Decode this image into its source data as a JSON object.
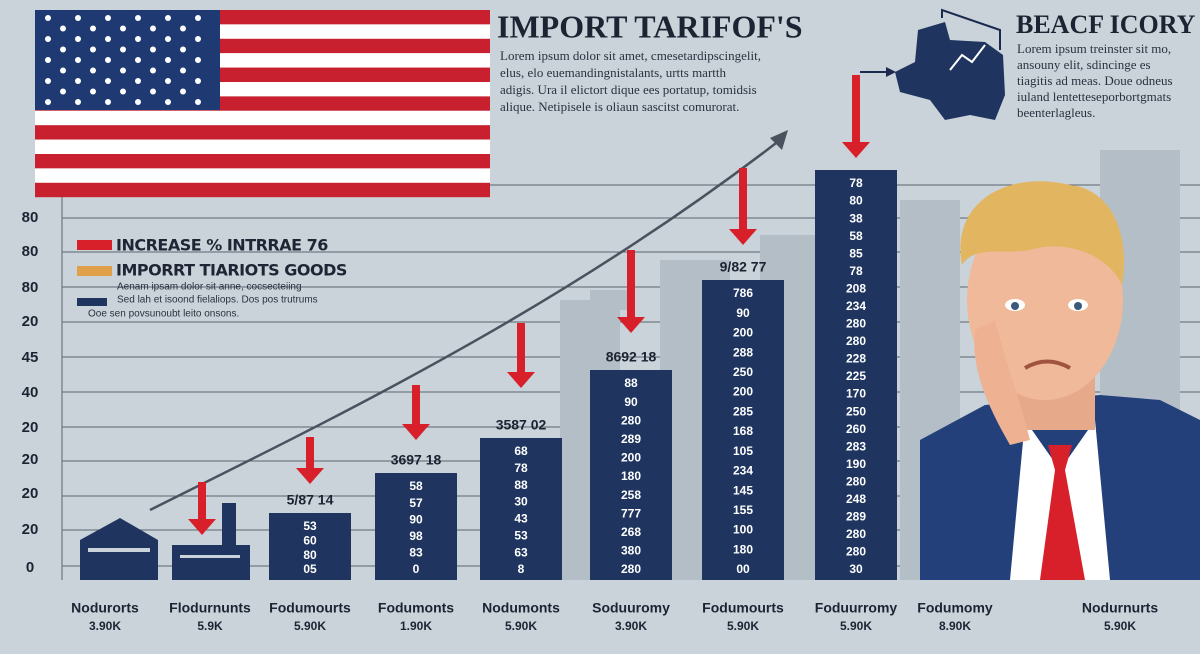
{
  "header": {
    "title": "IMPORT TARIFOF'S",
    "lines": [
      "Lorem ipsum dolor sit amet, cmesetardipscingelit,",
      "elus, elo euemandingnistalants, urtts martth",
      "adigis. Ura il elictort dique ees portatup, tomidsis",
      "alique. Netipisele is oliaun sascitst comurorat."
    ]
  },
  "right_panel": {
    "title": "BEACF ICORY",
    "lines": [
      "Lorem ipsum treinster sit mo,",
      "ansouny elit, sdincinge es",
      "tiagitis ad meas. Doue odneus",
      "iuland lentetteseporbortgmats",
      "beenterlagleus."
    ]
  },
  "legend": {
    "items": [
      "INCREASE % INTRRAE 76",
      "IMPORRT TIARIOTS GOODS"
    ],
    "notes": [
      "Aenam ipsam dolor sit anne, cocsecteiing",
      "Sed lah et isoond fielaliops. Dos pos trutrums",
      "Ooe sen povsunoubt leito onsons."
    ]
  },
  "y_labels": [
    "80",
    "80",
    "80",
    "20",
    "45",
    "40",
    "20",
    "20",
    "20",
    "20",
    "0"
  ],
  "columns": [
    {
      "name": "Nodurorts",
      "value": "3.90K"
    },
    {
      "name": "Flodurnunts",
      "value": "5.9K"
    },
    {
      "name": "Fodumourts",
      "value": "5.90K",
      "top_label": "5/87 14",
      "numbers": [
        "53",
        "60",
        "80",
        "05"
      ]
    },
    {
      "name": "Fodumonts",
      "value": "1.90K",
      "top_label": "3697 18",
      "numbers": [
        "58",
        "57",
        "90",
        "98",
        "83",
        "0"
      ]
    },
    {
      "name": "Nodumonts",
      "value": "5.90K",
      "top_label": "3587 02",
      "numbers": [
        "68",
        "78",
        "88",
        "30",
        "43",
        "53",
        "63",
        "8"
      ]
    },
    {
      "name": "Soduuromy",
      "value": "3.90K",
      "top_label": "8692 18",
      "numbers": [
        "88",
        "90",
        "280",
        "289",
        "200",
        "180",
        "258",
        "777",
        "268",
        "380",
        "280"
      ]
    },
    {
      "name": "Fodumourts",
      "value": "5.90K",
      "top_label": "9/82 77",
      "numbers": [
        "786",
        "90",
        "200",
        "288",
        "250",
        "200",
        "285",
        "168",
        "105",
        "234",
        "145",
        "155",
        "100",
        "180",
        "00"
      ]
    },
    {
      "name": "Foduurromy",
      "value": "5.90K",
      "numbers": [
        "78",
        "80",
        "38",
        "58",
        "85",
        "78",
        "208",
        "234",
        "280",
        "280",
        "228",
        "225",
        "170",
        "250",
        "260",
        "283",
        "190",
        "280",
        "248",
        "289",
        "280",
        "280",
        "30"
      ]
    },
    {
      "name": "Fodumomy",
      "value": "8.90K"
    },
    {
      "name": "Nodurnurts",
      "value": "5.90K"
    }
  ]
}
